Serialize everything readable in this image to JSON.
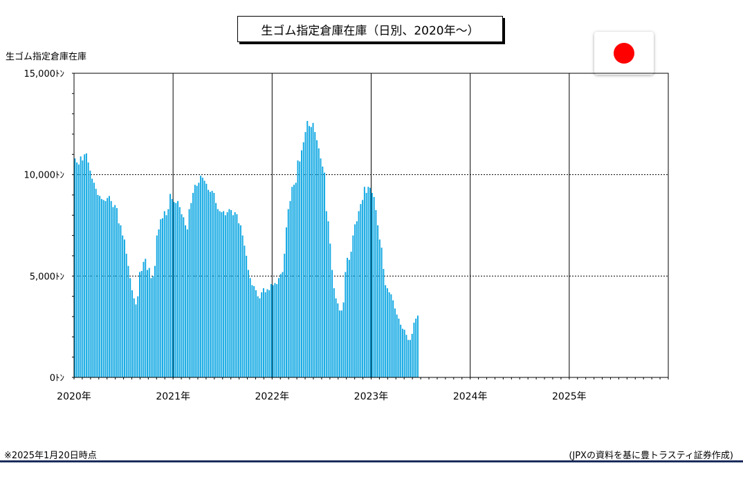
{
  "header": {
    "title": "生ゴム指定倉庫在庫（日別、2020年～）",
    "flag_icon": "japan-flag-icon"
  },
  "footer": {
    "note": "※2025年1月20日時点",
    "source": "(JPXの資料を基に豊トラスティ証券作成)"
  },
  "colors": {
    "bar": "#14a9e3",
    "grid": "#000000",
    "flag_red": "#ff0000",
    "rule": "#1a2c5c"
  },
  "chart_data": {
    "type": "bar",
    "title": "生ゴム指定倉庫在庫（日別、2020年～）",
    "ylabel": "生ゴム指定倉庫在庫",
    "xlabel": "",
    "ylim": [
      0,
      15000
    ],
    "yticks": [
      {
        "value": 0,
        "label": "0ﾄﾝ"
      },
      {
        "value": 5000,
        "label": "5,000ﾄﾝ"
      },
      {
        "value": 10000,
        "label": "10,000ﾄﾝ"
      },
      {
        "value": 15000,
        "label": "15,000ﾄﾝ"
      }
    ],
    "x_year_labels": [
      "2020年",
      "2021年",
      "2022年",
      "2023年",
      "2024年",
      "2025年"
    ],
    "x_range_years": [
      2020,
      2026
    ],
    "bars_per_year": 52,
    "grid": "horizontal dotted at 5,000 and 10,000; vertical solid at year boundaries",
    "values": [
      10800,
      10600,
      10500,
      10900,
      10700,
      11000,
      11050,
      10600,
      10200,
      9800,
      9600,
      9300,
      9000,
      8950,
      8800,
      8750,
      8700,
      8850,
      8950,
      8700,
      8400,
      8500,
      8350,
      7600,
      7500,
      7000,
      6800,
      6100,
      5500,
      4900,
      4300,
      3900,
      3600,
      4000,
      5200,
      5250,
      5700,
      5850,
      5300,
      5400,
      4900,
      5000,
      5500,
      7000,
      7300,
      7800,
      7850,
      8200,
      8000,
      8300,
      9050,
      8800,
      8650,
      8600,
      8700,
      8400,
      8050,
      7900,
      7500,
      7300,
      8300,
      8600,
      9100,
      9500,
      9450,
      9600,
      9950,
      9850,
      9700,
      9550,
      9250,
      9150,
      9200,
      9100,
      8600,
      8300,
      8200,
      8150,
      8200,
      8000,
      8150,
      8300,
      8250,
      8000,
      8150,
      8050,
      7600,
      7500,
      7000,
      6500,
      6000,
      5300,
      4900,
      4550,
      4500,
      4300,
      4000,
      3900,
      4200,
      4400,
      4200,
      4350,
      4300,
      4600,
      4550,
      4650,
      4600,
      4900,
      5100,
      5200,
      6100,
      7400,
      8300,
      8700,
      9400,
      9500,
      9600,
      10700,
      10650,
      11200,
      11600,
      12100,
      12650,
      12400,
      12350,
      12550,
      12100,
      11700,
      11300,
      10800,
      10400,
      10100,
      8200,
      7700,
      6600,
      5300,
      4400,
      3900,
      3650,
      3300,
      3300,
      3700,
      5200,
      5900,
      5800,
      6200,
      7000,
      7550,
      7700,
      8200,
      8550,
      8750,
      9400,
      9100,
      9400,
      9350,
      9100,
      8900,
      8250,
      7500,
      6800,
      6400,
      5350,
      4550,
      4400,
      4200,
      4100,
      3800,
      3400,
      3100,
      2900,
      2600,
      2400,
      2350,
      2100,
      1850,
      1850,
      2150,
      2700,
      2900,
      3050
    ]
  }
}
